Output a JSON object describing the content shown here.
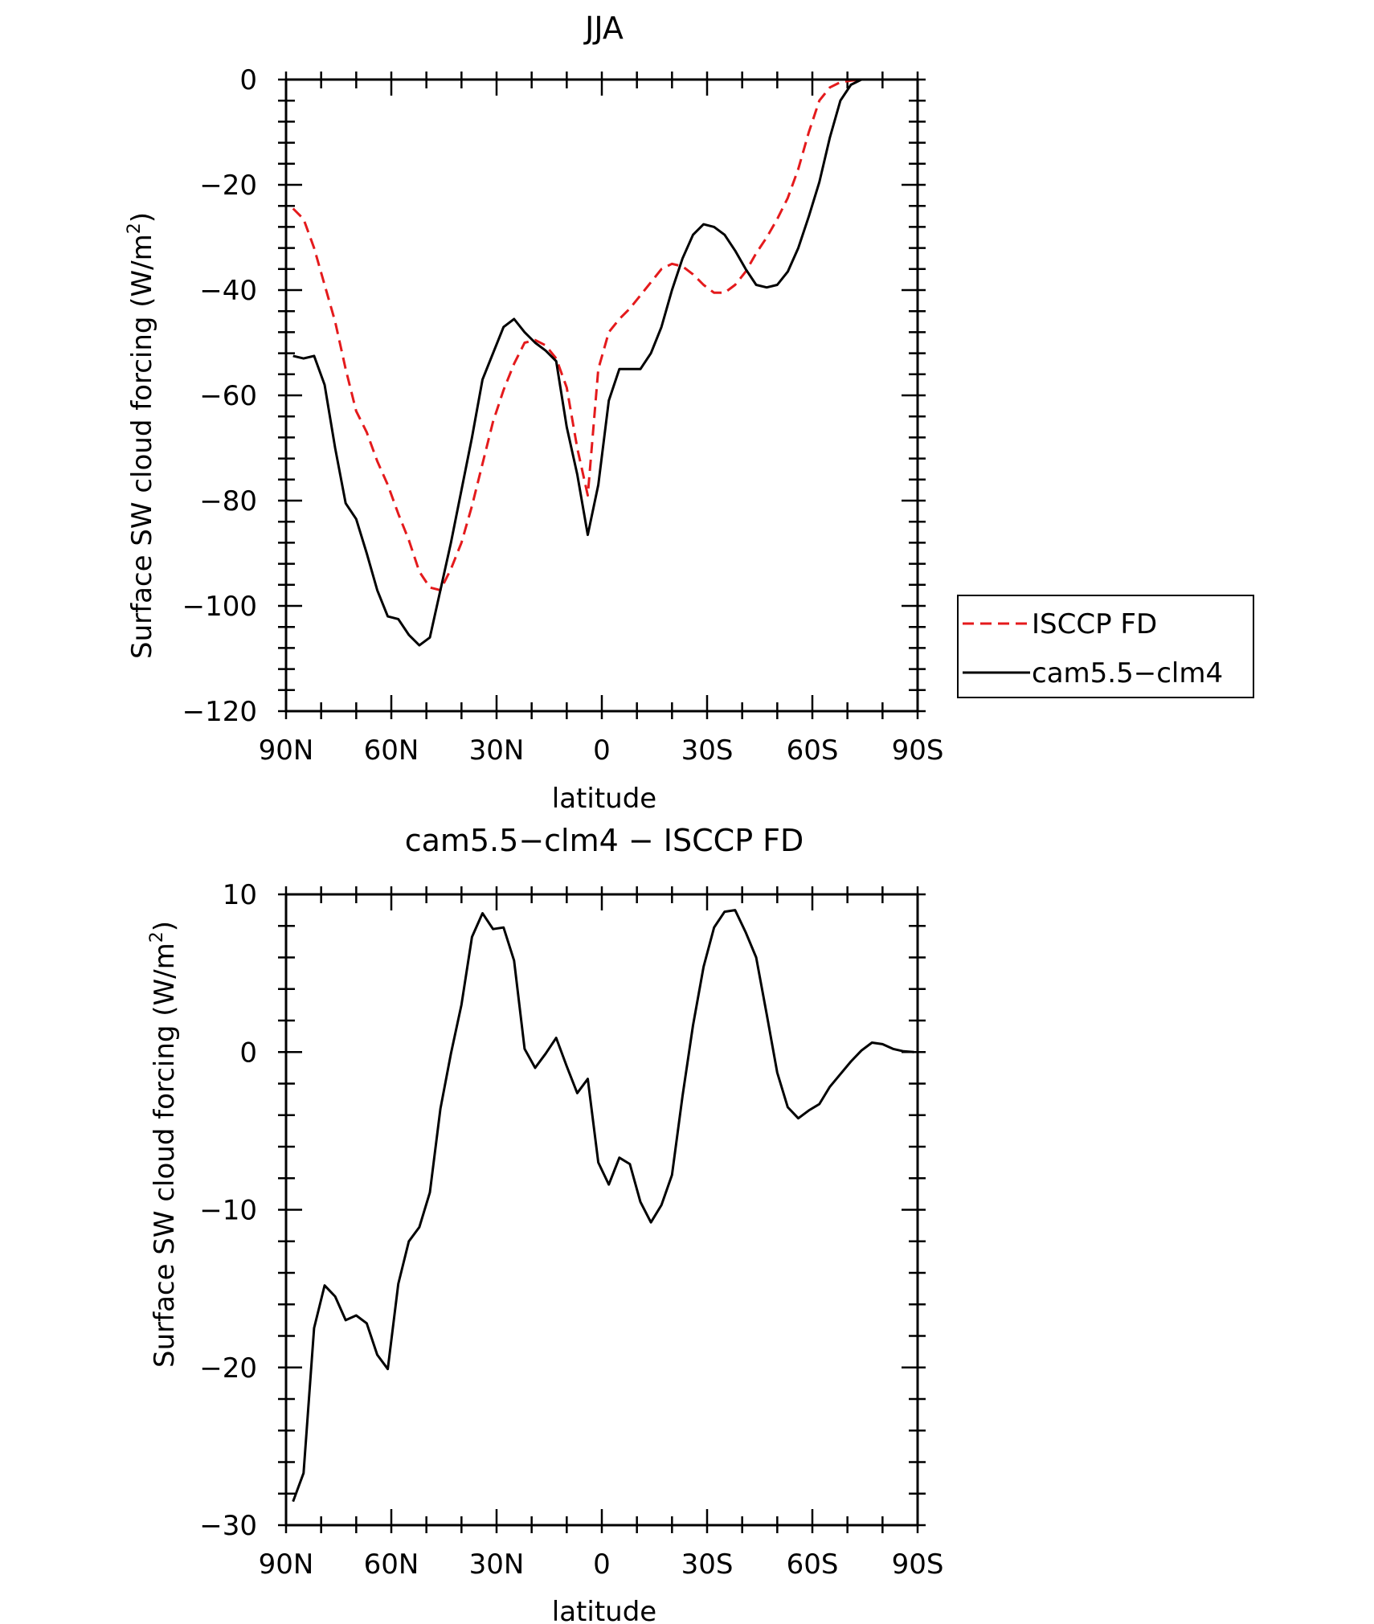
{
  "chart_data": [
    {
      "type": "line",
      "title": "JJA",
      "xlabel": "latitude",
      "ylabel": "Surface SW cloud forcing (W/m",
      "ylabel_sup": "2",
      "ylabel_close": ")",
      "xlim": [
        90,
        -90
      ],
      "ylim": [
        -120,
        0
      ],
      "x_ticks": [
        90,
        60,
        30,
        0,
        -30,
        -60,
        -90
      ],
      "x_tick_labels": [
        "90N",
        "60N",
        "30N",
        "0",
        "30S",
        "60S",
        "90S"
      ],
      "y_ticks": [
        0,
        -20,
        -40,
        -60,
        -80,
        -100,
        -120
      ],
      "y_tick_labels": [
        "0",
        "−20",
        "−40",
        "−60",
        "−80",
        "−100",
        "−120"
      ],
      "legend_position": "right",
      "series": [
        {
          "name": "ISCCP FD",
          "color": "#e41a1c",
          "dash": "dashed",
          "x": [
            88,
            85,
            82,
            79,
            76,
            73,
            70,
            67,
            64,
            61,
            58,
            55,
            52,
            49,
            46,
            43,
            40,
            37,
            34,
            31,
            28,
            25,
            22,
            19,
            16,
            13,
            10,
            7,
            4,
            1,
            -2,
            -5,
            -8,
            -11,
            -14,
            -17,
            -20,
            -23,
            -26,
            -29,
            -32,
            -35,
            -38,
            -41,
            -44,
            -47,
            -50,
            -53,
            -56,
            -59,
            -62,
            -65,
            -68,
            -71,
            -74,
            -77,
            -80,
            -83,
            -86,
            -89
          ],
          "y": [
            -24.5,
            -26.5,
            -32,
            -39,
            -46,
            -55,
            -63,
            -67,
            -72.5,
            -77,
            -82.5,
            -87.5,
            -93.5,
            -96.5,
            -97,
            -93,
            -88,
            -81,
            -73,
            -65,
            -59,
            -54,
            -50,
            -49.5,
            -50.5,
            -53,
            -58.5,
            -70,
            -79,
            -55,
            -48,
            -45.5,
            -43.5,
            -41,
            -38.5,
            -36,
            -35,
            -35.5,
            -37,
            -39,
            -40.5,
            -40.5,
            -39,
            -36.5,
            -33,
            -30,
            -26.5,
            -22.5,
            -17,
            -10,
            -4,
            -1.5,
            -0.5,
            -0.2,
            0,
            0,
            0,
            0,
            0,
            0
          ]
        },
        {
          "name": "cam5.5−clm4",
          "color": "#000000",
          "dash": "solid",
          "x": [
            88,
            85,
            82,
            79,
            76,
            73,
            70,
            67,
            64,
            61,
            58,
            55,
            52,
            49,
            46,
            43,
            40,
            37,
            34,
            31,
            28,
            25,
            22,
            19,
            16,
            13,
            10,
            7,
            4,
            1,
            -2,
            -5,
            -8,
            -11,
            -14,
            -17,
            -20,
            -23,
            -26,
            -29,
            -32,
            -35,
            -38,
            -41,
            -44,
            -47,
            -50,
            -53,
            -56,
            -59,
            -62,
            -65,
            -68,
            -71,
            -74,
            -77,
            -80,
            -83,
            -86,
            -89
          ],
          "y": [
            -52.5,
            -53,
            -52.5,
            -58,
            -70,
            -80.5,
            -83.5,
            -90,
            -97,
            -102,
            -102.5,
            -105.5,
            -107.5,
            -106,
            -97,
            -88,
            -78,
            -68,
            -57,
            -52,
            -47,
            -45.5,
            -48,
            -50,
            -51.5,
            -53.5,
            -66,
            -75,
            -86.5,
            -77,
            -61,
            -55,
            -55,
            -55,
            -52,
            -47,
            -40,
            -34,
            -29.5,
            -27.5,
            -28,
            -29.5,
            -32.5,
            -36,
            -39,
            -39.5,
            -39,
            -36.5,
            -32,
            -26,
            -19.5,
            -11,
            -4,
            -1,
            0,
            0,
            0,
            0,
            0,
            0
          ]
        }
      ]
    },
    {
      "type": "line",
      "title": "cam5.5−clm4 − ISCCP FD",
      "xlabel": "latitude",
      "ylabel": "Surface SW cloud forcing (W/m",
      "ylabel_sup": "2",
      "ylabel_close": ")",
      "xlim": [
        90,
        -90
      ],
      "ylim": [
        -30,
        10
      ],
      "x_ticks": [
        90,
        60,
        30,
        0,
        -30,
        -60,
        -90
      ],
      "x_tick_labels": [
        "90N",
        "60N",
        "30N",
        "0",
        "30S",
        "60S",
        "90S"
      ],
      "y_ticks": [
        10,
        0,
        -10,
        -20,
        -30
      ],
      "y_tick_labels": [
        "10",
        "0",
        "−10",
        "−20",
        "−30"
      ],
      "series": [
        {
          "color": "#000000",
          "dash": "solid",
          "x": [
            88,
            85,
            82,
            79,
            76,
            73,
            70,
            67,
            64,
            61,
            58,
            55,
            52,
            49,
            46,
            43,
            40,
            37,
            34,
            31,
            28,
            25,
            22,
            19,
            16,
            13,
            10,
            7,
            4,
            1,
            -2,
            -5,
            -8,
            -11,
            -14,
            -17,
            -20,
            -23,
            -26,
            -29,
            -32,
            -35,
            -38,
            -41,
            -44,
            -47,
            -50,
            -53,
            -56,
            -59,
            -62,
            -65,
            -68,
            -71,
            -74,
            -77,
            -80,
            -83,
            -86,
            -89
          ],
          "y": [
            -28.5,
            -26.7,
            -17.5,
            -14.8,
            -15.5,
            -17,
            -16.7,
            -17.2,
            -19.2,
            -20.1,
            -14.7,
            -12,
            -11.1,
            -8.9,
            -3.6,
            -0.1,
            3,
            7.3,
            8.8,
            7.8,
            7.9,
            5.8,
            0.2,
            -1,
            -0.1,
            0.9,
            -0.9,
            -2.6,
            -1.7,
            -7,
            -8.4,
            -6.7,
            -7.1,
            -9.5,
            -10.8,
            -9.7,
            -7.8,
            -2.8,
            1.7,
            5.4,
            7.9,
            8.9,
            9,
            7.6,
            6,
            2.4,
            -1.3,
            -3.5,
            -4.2,
            -3.7,
            -3.3,
            -2.2,
            -1.4,
            -0.6,
            0.1,
            0.6,
            0.5,
            0.2,
            0.05,
            0
          ]
        }
      ]
    }
  ]
}
